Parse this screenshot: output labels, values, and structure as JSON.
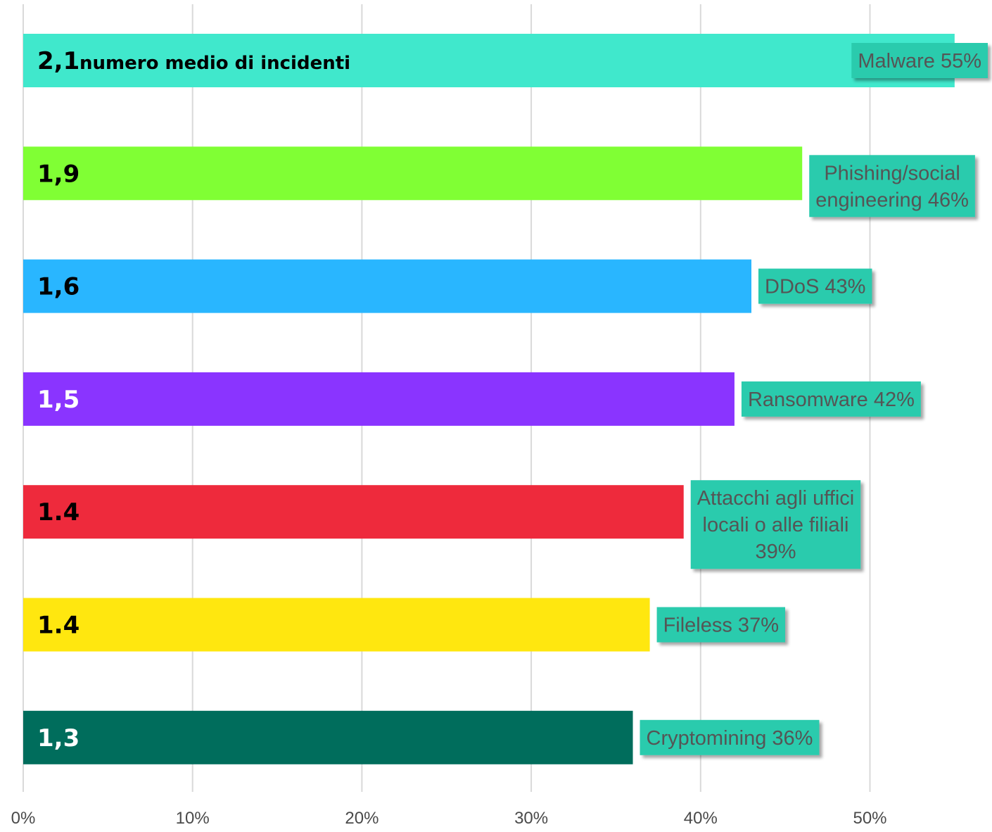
{
  "chart_data": {
    "type": "bar",
    "orientation": "horizontal",
    "title": "",
    "xlabel": "",
    "ylabel": "",
    "xlim": [
      0,
      55
    ],
    "x_ticks": [
      "0%",
      "10%",
      "20%",
      "30%",
      "40%",
      "50%"
    ],
    "x_tick_values": [
      0,
      10,
      20,
      30,
      40,
      50
    ],
    "grid": "vertical",
    "categories": [
      "Malware",
      "Phishing/social engineering",
      "DDoS",
      "Ransomware",
      "Attacchi agli uffici locali o alle filiali",
      "Fileless",
      "Cryptomining"
    ],
    "values": [
      55,
      46,
      43,
      42,
      39,
      37,
      36
    ],
    "bar_labels": [
      "2,1",
      "1,9",
      "1,6",
      "1,5",
      "1.4",
      "1.4",
      "1,3"
    ],
    "first_bar_note": "numero medio di incidenti",
    "callouts": [
      [
        "Malware 55%"
      ],
      [
        "Phishing/social",
        "engineering 46%"
      ],
      [
        "DDoS 43%"
      ],
      [
        "Ransomware 42%"
      ],
      [
        "Attacchi agli uffici",
        "locali o alle filiali",
        "39%"
      ],
      [
        "Fileless 37%"
      ],
      [
        "Cryptomining 36%"
      ]
    ],
    "bar_colors": [
      "#40e8cc",
      "#80ff34",
      "#29b6ff",
      "#8a34ff",
      "#ee2a3c",
      "#ffe70f",
      "#006d5c"
    ],
    "bar_label_colors": [
      "#000000",
      "#000000",
      "#000000",
      "#ffffff",
      "#000000",
      "#000000",
      "#ffffff"
    ],
    "callout_color": "#2bcbad",
    "gridline_color": "#d9d9d9"
  }
}
